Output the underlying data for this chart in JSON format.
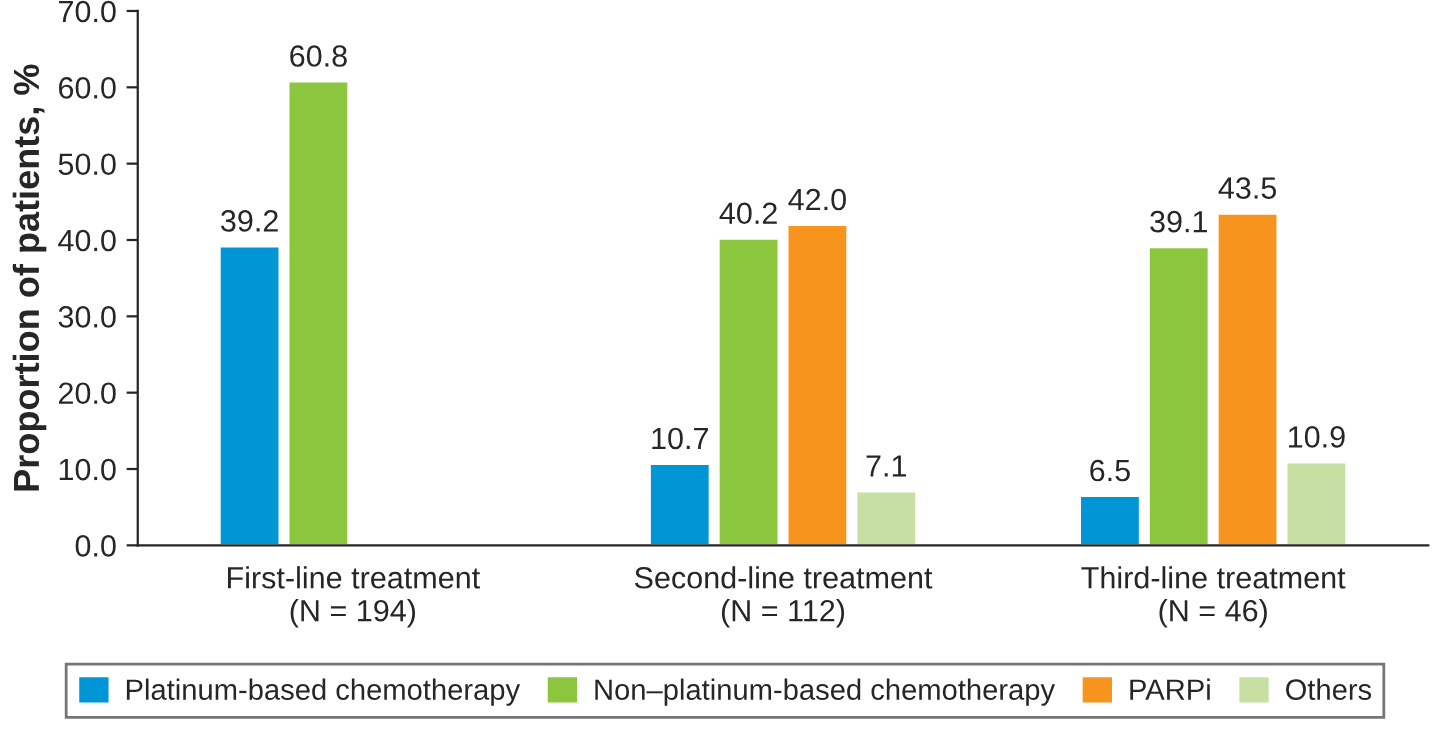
{
  "chart_data": {
    "type": "bar",
    "ylabel": "Proportion of patients, %",
    "categories": [
      "First-line treatment\n(N = 194)",
      "Second-line treatment\n(N = 112)",
      "Third-line treatment\n(N = 46)"
    ],
    "series": [
      {
        "name": "Platinum-based chemotherapy",
        "color": "#0096d6",
        "values": [
          39.2,
          10.7,
          6.5
        ],
        "value_labels": [
          "39.2",
          "10.7",
          "6.5"
        ]
      },
      {
        "name": "Non–platinum-based chemotherapy",
        "color": "#8cc63f",
        "values": [
          60.8,
          40.2,
          39.1
        ],
        "value_labels": [
          "60.8",
          "40.2",
          "39.1"
        ]
      },
      {
        "name": "PARPi",
        "color": "#f7941d",
        "values": [
          null,
          42.0,
          43.5
        ],
        "value_labels": [
          null,
          "42.0",
          "43.5"
        ]
      },
      {
        "name": "Others",
        "color": "#c8dfa3",
        "values": [
          null,
          7.1,
          10.9
        ],
        "value_labels": [
          null,
          "7.1",
          "10.9"
        ]
      }
    ],
    "ylim": [
      0,
      70
    ],
    "yticks": [
      {
        "value": 0,
        "label": "0.0"
      },
      {
        "value": 10,
        "label": "10.0"
      },
      {
        "value": 20,
        "label": "20.0"
      },
      {
        "value": 30,
        "label": "30.0"
      },
      {
        "value": 40,
        "label": "40.0"
      },
      {
        "value": 50,
        "label": "50.0"
      },
      {
        "value": 60,
        "label": "60.0"
      },
      {
        "value": 70,
        "label": "70.0"
      }
    ],
    "grid": false,
    "legend": "bottom"
  }
}
